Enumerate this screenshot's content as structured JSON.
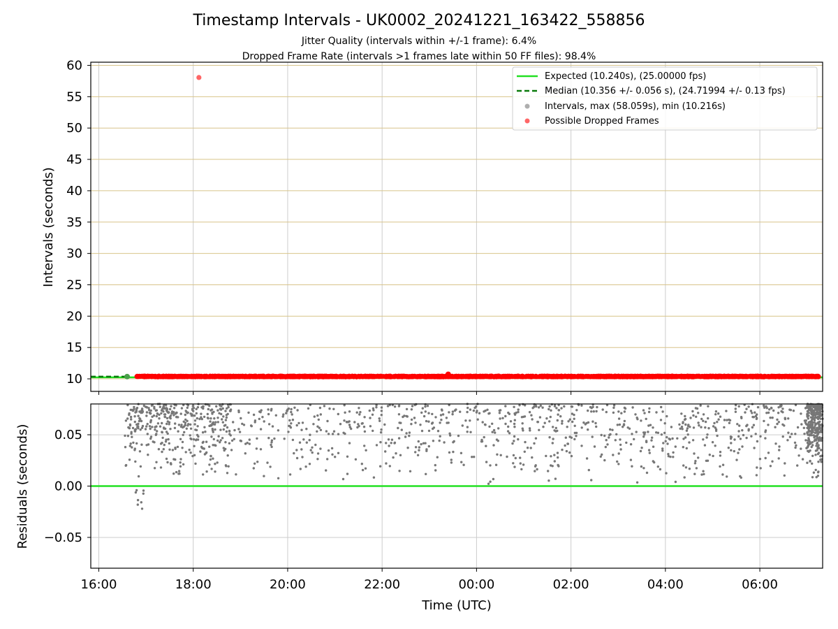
{
  "title": "Timestamp Intervals - UK0002_20241221_163422_558856",
  "subtitle_1": "Jitter Quality (intervals within +/-1 frame): 6.4%",
  "subtitle_2": "Dropped Frame Rate (intervals >1 frames late within 50 FF files): 98.4%",
  "colors": {
    "expected": "#22e022",
    "median": "#0a7a0a",
    "intervals": "#9a9a9a",
    "dropped": "#ff0000",
    "dropped_legend": "#ff6666",
    "residual_points": "#777777",
    "h_grid_top": "#d8c48a",
    "grid": "#cccccc"
  },
  "chart_data": [
    {
      "type": "scatter",
      "panel": "intervals",
      "ylabel": "Intervals (seconds)",
      "ylim": [
        8,
        60.5
      ],
      "yticks": [
        10,
        15,
        20,
        25,
        30,
        35,
        40,
        45,
        50,
        55,
        60
      ],
      "xlim_hours": [
        15.83,
        31.33
      ],
      "legend_position": "top-right",
      "legend": [
        {
          "label": "Expected (10.240s), (25.00000 fps)",
          "style": "line-solid",
          "color_key": "expected"
        },
        {
          "label": "Median (10.356 +/- 0.056 s), (24.71994 +/- 0.13 fps)",
          "style": "line-dashed",
          "color_key": "median"
        },
        {
          "label": "Intervals, max (58.059s), min (10.216s)",
          "style": "marker",
          "color_key": "intervals"
        },
        {
          "label": "Possible Dropped Frames",
          "style": "marker",
          "color_key": "dropped_legend"
        }
      ],
      "expected_interval": 10.24,
      "median_interval": 10.356,
      "dropped_band": {
        "x_start": 16.8,
        "x_end": 31.25,
        "y_min": 10.28,
        "y_max": 10.48
      },
      "notable_points": [
        {
          "x": 18.12,
          "y": 58.059,
          "kind": "dropped"
        },
        {
          "x": 16.6,
          "y": 10.36,
          "kind": "interval"
        },
        {
          "x": 23.4,
          "y": 10.72,
          "kind": "dropped"
        }
      ]
    },
    {
      "type": "scatter",
      "panel": "residuals",
      "xlabel": "Time (UTC)",
      "ylabel": "Residuals (seconds)",
      "ylim": [
        -0.08,
        0.08
      ],
      "yticks": [
        -0.05,
        0.0,
        0.05
      ],
      "ytick_labels": [
        "−0.05",
        "0.00",
        "0.05"
      ],
      "xlim_hours": [
        15.83,
        31.33
      ],
      "xticks": [
        16,
        18,
        20,
        22,
        24,
        26,
        28,
        30
      ],
      "xtick_labels": [
        "16:00",
        "18:00",
        "20:00",
        "22:00",
        "00:00",
        "02:00",
        "04:00",
        "06:00"
      ],
      "zero_line": 0.0,
      "residual_distribution": {
        "x_start": 16.55,
        "x_end": 31.33,
        "typical_range": [
          0.0,
          0.08
        ],
        "early_negative_min": -0.024,
        "dense_regions": [
          [
            16.6,
            18.8
          ],
          [
            31.0,
            31.33
          ]
        ],
        "sample_count": 1100
      }
    }
  ]
}
